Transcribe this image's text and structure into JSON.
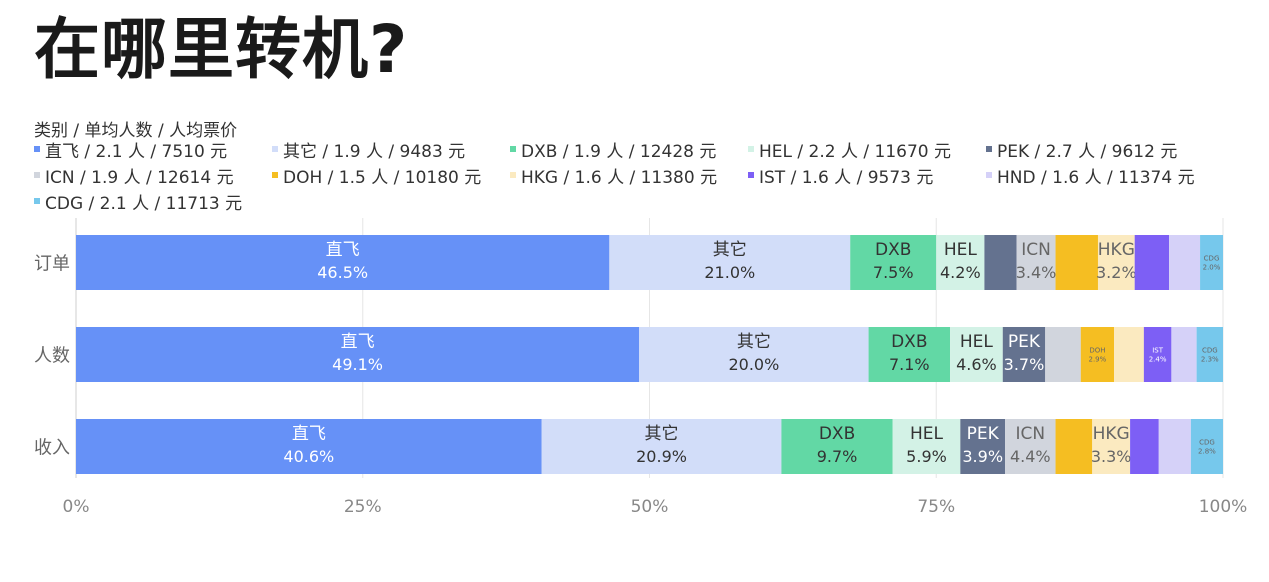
{
  "title": "在哪里转机?",
  "legend_header": "类别 / 单均人数 / 人均票价",
  "chart_data": {
    "type": "bar",
    "orientation": "horizontal",
    "stacked": "percent",
    "categories": [
      "订单",
      "人数",
      "收入"
    ],
    "xlim": [
      0,
      100
    ],
    "x_ticks": [
      "0%",
      "25%",
      "50%",
      "75%",
      "100%"
    ],
    "grid": true,
    "legend_position": "top-left",
    "series": [
      {
        "name": "直飞",
        "legend": "直飞 / 2.1 人 / 7510 元",
        "color": "#6691f7",
        "text_color": "#ffffff",
        "values": [
          46.5,
          49.1,
          40.6
        ],
        "labels": [
          "46.5%",
          "49.1%",
          "40.6%"
        ]
      },
      {
        "name": "其它",
        "legend": "其它 / 1.9 人 / 9483 元",
        "color": "#d2ddf9",
        "text_color": "#333333",
        "values": [
          21.0,
          20.0,
          20.9
        ],
        "labels": [
          "21.0%",
          "20.0%",
          "20.9%"
        ]
      },
      {
        "name": "DXB",
        "legend": "DXB / 1.9 人 / 12428 元",
        "color": "#62d8a5",
        "text_color": "#333333",
        "values": [
          7.5,
          7.1,
          9.7
        ],
        "labels": [
          "7.5%",
          "7.1%",
          "9.7%"
        ]
      },
      {
        "name": "HEL",
        "legend": "HEL / 2.2 人 / 11670 元",
        "color": "#d3f2e6",
        "text_color": "#333333",
        "values": [
          4.2,
          4.6,
          5.9
        ],
        "labels": [
          "4.2%",
          "4.6%",
          "5.9%"
        ]
      },
      {
        "name": "PEK",
        "legend": "PEK / 2.7 人 / 9612 元",
        "color": "#64728f",
        "text_color": "#ffffff",
        "values": [
          2.8,
          3.7,
          3.9
        ],
        "labels": [
          "",
          "3.7%",
          "3.9%"
        ]
      },
      {
        "name": "ICN",
        "legend": "ICN / 1.9 人 / 12614 元",
        "color": "#d1d5dd",
        "text_color": "#666666",
        "values": [
          3.4,
          3.1,
          4.4
        ],
        "labels": [
          "3.4%",
          "",
          "4.4%"
        ]
      },
      {
        "name": "DOH",
        "legend": "DOH / 1.5 人 / 10180 元",
        "color": "#f5be22",
        "text_color": "#666666",
        "values": [
          3.7,
          2.9,
          3.2
        ],
        "labels": [
          "",
          "2.9%",
          ""
        ]
      },
      {
        "name": "HKG",
        "legend": "HKG / 1.6 人 / 11380 元",
        "color": "#fbeac0",
        "text_color": "#666666",
        "values": [
          3.2,
          2.6,
          3.3
        ],
        "labels": [
          "3.2%",
          "",
          "3.3%"
        ]
      },
      {
        "name": "IST",
        "legend": "IST / 1.6 人 / 9573 元",
        "color": "#7d5ff5",
        "text_color": "#ffffff",
        "values": [
          3.0,
          2.4,
          2.5
        ],
        "labels": [
          "",
          "2.4%",
          ""
        ]
      },
      {
        "name": "HND",
        "legend": "HND / 1.6 人 / 11374 元",
        "color": "#d5d1f8",
        "text_color": "#666666",
        "values": [
          2.7,
          2.2,
          2.8
        ],
        "labels": [
          "",
          "",
          ""
        ]
      },
      {
        "name": "CDG",
        "legend": "CDG / 2.1 人 / 11713 元",
        "color": "#76c8ec",
        "text_color": "#666666",
        "values": [
          2.0,
          2.3,
          2.8
        ],
        "labels": [
          "2.0%",
          "2.3%",
          "2.8%"
        ]
      }
    ]
  }
}
